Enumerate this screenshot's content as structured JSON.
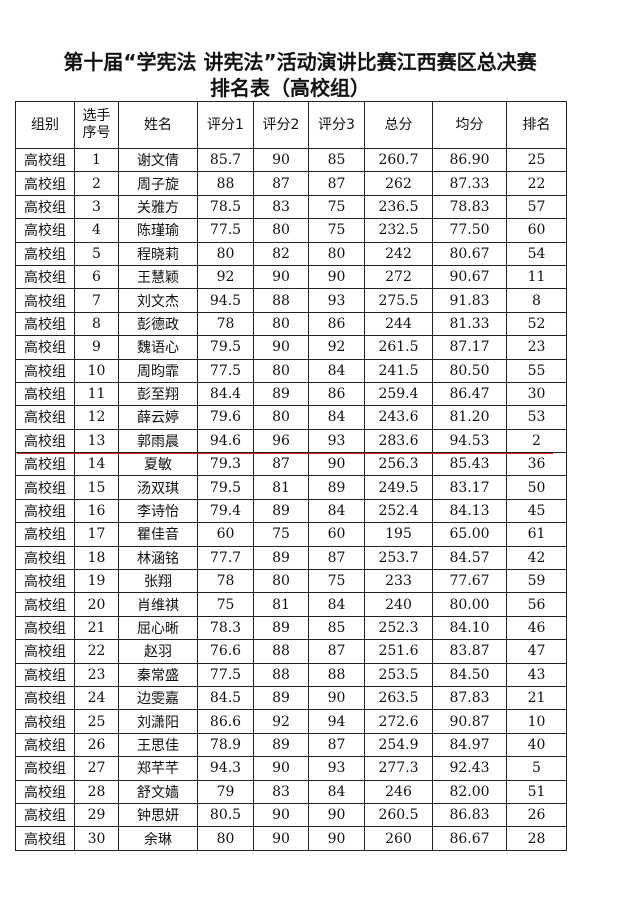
{
  "title": {
    "line1": "第十届“学宪法 讲宪法”活动演讲比赛江西赛区总决赛",
    "line2": "排名表（高校组）"
  },
  "columns": [
    "组别",
    "选手序号",
    "姓名",
    "评分1",
    "评分2",
    "评分3",
    "总分",
    "均分",
    "排名"
  ],
  "highlight_color": "#e02020",
  "rows": [
    [
      "高校组",
      "1",
      "谢文倩",
      "85.7",
      "90",
      "85",
      "260.7",
      "86.90",
      "25"
    ],
    [
      "高校组",
      "2",
      "周子旋",
      "88",
      "87",
      "87",
      "262",
      "87.33",
      "22"
    ],
    [
      "高校组",
      "3",
      "关雅方",
      "78.5",
      "83",
      "75",
      "236.5",
      "78.83",
      "57"
    ],
    [
      "高校组",
      "4",
      "陈瑾瑜",
      "77.5",
      "80",
      "75",
      "232.5",
      "77.50",
      "60"
    ],
    [
      "高校组",
      "5",
      "程晓莉",
      "80",
      "82",
      "80",
      "242",
      "80.67",
      "54"
    ],
    [
      "高校组",
      "6",
      "王慧颖",
      "92",
      "90",
      "90",
      "272",
      "90.67",
      "11"
    ],
    [
      "高校组",
      "7",
      "刘文杰",
      "94.5",
      "88",
      "93",
      "275.5",
      "91.83",
      "8"
    ],
    [
      "高校组",
      "8",
      "彭德政",
      "78",
      "80",
      "86",
      "244",
      "81.33",
      "52"
    ],
    [
      "高校组",
      "9",
      "魏语心",
      "79.5",
      "90",
      "92",
      "261.5",
      "87.17",
      "23"
    ],
    [
      "高校组",
      "10",
      "周昀霏",
      "77.5",
      "80",
      "84",
      "241.5",
      "80.50",
      "55"
    ],
    [
      "高校组",
      "11",
      "彭至翔",
      "84.4",
      "89",
      "86",
      "259.4",
      "86.47",
      "30"
    ],
    [
      "高校组",
      "12",
      "薛云婷",
      "79.6",
      "80",
      "84",
      "243.6",
      "81.20",
      "53"
    ],
    [
      "高校组",
      "13",
      "郭雨晨",
      "94.6",
      "96",
      "93",
      "283.6",
      "94.53",
      "2"
    ],
    [
      "高校组",
      "14",
      "夏敏",
      "79.3",
      "87",
      "90",
      "256.3",
      "85.43",
      "36"
    ],
    [
      "高校组",
      "15",
      "汤双琪",
      "79.5",
      "81",
      "89",
      "249.5",
      "83.17",
      "50"
    ],
    [
      "高校组",
      "16",
      "李诗怡",
      "79.4",
      "89",
      "84",
      "252.4",
      "84.13",
      "45"
    ],
    [
      "高校组",
      "17",
      "瞿佳音",
      "60",
      "75",
      "60",
      "195",
      "65.00",
      "61"
    ],
    [
      "高校组",
      "18",
      "林涵铭",
      "77.7",
      "89",
      "87",
      "253.7",
      "84.57",
      "42"
    ],
    [
      "高校组",
      "19",
      "张翔",
      "78",
      "80",
      "75",
      "233",
      "77.67",
      "59"
    ],
    [
      "高校组",
      "20",
      "肖维祺",
      "75",
      "81",
      "84",
      "240",
      "80.00",
      "56"
    ],
    [
      "高校组",
      "21",
      "屈心晰",
      "78.3",
      "89",
      "85",
      "252.3",
      "84.10",
      "46"
    ],
    [
      "高校组",
      "22",
      "赵羽",
      "76.6",
      "88",
      "87",
      "251.6",
      "83.87",
      "47"
    ],
    [
      "高校组",
      "23",
      "秦常盛",
      "77.5",
      "88",
      "88",
      "253.5",
      "84.50",
      "43"
    ],
    [
      "高校组",
      "24",
      "边雯嘉",
      "84.5",
      "89",
      "90",
      "263.5",
      "87.83",
      "21"
    ],
    [
      "高校组",
      "25",
      "刘潇阳",
      "86.6",
      "92",
      "94",
      "272.6",
      "90.87",
      "10"
    ],
    [
      "高校组",
      "26",
      "王思佳",
      "78.9",
      "89",
      "87",
      "254.9",
      "84.97",
      "40"
    ],
    [
      "高校组",
      "27",
      "郑芊芊",
      "94.3",
      "90",
      "93",
      "277.3",
      "92.43",
      "5"
    ],
    [
      "高校组",
      "28",
      "舒文嫱",
      "79",
      "83",
      "84",
      "246",
      "82.00",
      "51"
    ],
    [
      "高校组",
      "29",
      "钟思妍",
      "80.5",
      "90",
      "90",
      "260.5",
      "86.83",
      "26"
    ],
    [
      "高校组",
      "30",
      "余琳",
      "80",
      "90",
      "90",
      "260",
      "86.67",
      "28"
    ]
  ]
}
